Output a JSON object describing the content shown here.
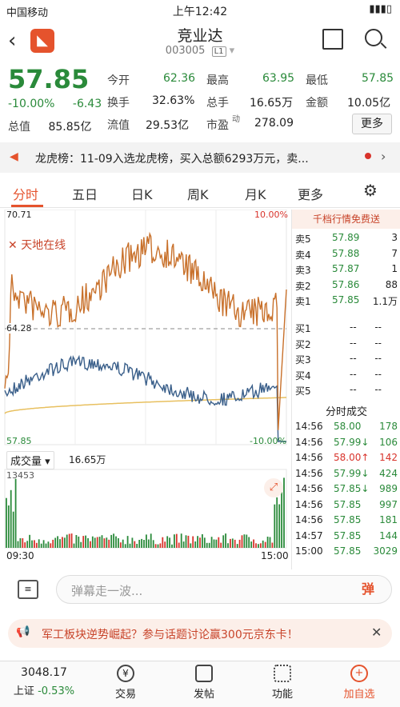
{
  "status_bar": {
    "carrier": "中国移动",
    "time": "上午12:42"
  },
  "header": {
    "title": "竞业达",
    "code": "003005",
    "badge": "L1"
  },
  "quote": {
    "price": "57.85",
    "change_pct": "-10.00%",
    "change": "-6.43",
    "total_value_label": "总值",
    "total_value": "85.85亿",
    "fields": [
      {
        "label": "今开",
        "value": "62.36",
        "color": "green"
      },
      {
        "label": "最高",
        "value": "63.95",
        "color": "green"
      },
      {
        "label": "最低",
        "value": "57.85",
        "color": "green"
      },
      {
        "label": "换手",
        "value": "32.63%",
        "color": ""
      },
      {
        "label": "总手",
        "value": "16.65万",
        "color": ""
      },
      {
        "label": "金额",
        "value": "10.05亿",
        "color": ""
      },
      {
        "label": "流值",
        "value": "29.53亿",
        "color": ""
      },
      {
        "label": "市盈",
        "value": "278.09",
        "color": "",
        "sup": "动"
      }
    ],
    "more_label": "更多"
  },
  "news": {
    "text": "龙虎榜：11-09入选龙虎榜，买入总额6293万元，卖..."
  },
  "tabs": [
    "分时",
    "五日",
    "日K",
    "周K",
    "月K",
    "更多"
  ],
  "chart": {
    "high_label": "70.71",
    "low_label": "57.85",
    "mid_label": "64.28",
    "high_pct": "10.00%",
    "low_pct": "-10.00%",
    "tiandi": "天地在线",
    "volume_label": "成交量",
    "volume_value": "16.65万",
    "volume_max": "13453",
    "time_start": "09:30",
    "time_end": "15:00"
  },
  "order_book": {
    "title": "千档行情免费送",
    "asks": [
      {
        "label": "卖5",
        "price": "57.89",
        "vol": "3"
      },
      {
        "label": "卖4",
        "price": "57.88",
        "vol": "7"
      },
      {
        "label": "卖3",
        "price": "57.87",
        "vol": "1"
      },
      {
        "label": "卖2",
        "price": "57.86",
        "vol": "88"
      },
      {
        "label": "卖1",
        "price": "57.85",
        "vol": "1.1万"
      }
    ],
    "bids": [
      {
        "label": "买1",
        "price": "--",
        "vol": "--"
      },
      {
        "label": "买2",
        "price": "--",
        "vol": "--"
      },
      {
        "label": "买3",
        "price": "--",
        "vol": "--"
      },
      {
        "label": "买4",
        "price": "--",
        "vol": "--"
      },
      {
        "label": "买5",
        "price": "--",
        "vol": "--"
      }
    ],
    "trades_title": "分时成交",
    "trades": [
      {
        "time": "14:56",
        "price": "58.00",
        "vol": "178",
        "dir": ""
      },
      {
        "time": "14:56",
        "price": "57.99↓",
        "vol": "106",
        "dir": "down"
      },
      {
        "time": "14:56",
        "price": "58.00↑",
        "vol": "142",
        "dir": "up"
      },
      {
        "time": "14:56",
        "price": "57.99↓",
        "vol": "424",
        "dir": "down"
      },
      {
        "time": "14:56",
        "price": "57.85↓",
        "vol": "989",
        "dir": "down"
      },
      {
        "time": "14:56",
        "price": "57.85",
        "vol": "997",
        "dir": ""
      },
      {
        "time": "14:56",
        "price": "57.85",
        "vol": "181",
        "dir": ""
      },
      {
        "time": "14:57",
        "price": "57.85",
        "vol": "144",
        "dir": ""
      },
      {
        "time": "15:00",
        "price": "57.85",
        "vol": "3029",
        "dir": ""
      }
    ]
  },
  "comment": {
    "placeholder": "弹幕走一波...",
    "dan": "弹"
  },
  "promo": {
    "text": "军工板块逆势崛起？参与话题讨论赢300元京东卡！"
  },
  "bottom": {
    "index_value": "3048.17",
    "index_name": "上证",
    "index_change": "-0.53%",
    "items": [
      "交易",
      "发帖",
      "功能",
      "加自选"
    ]
  },
  "colors": {
    "accent": "#e5532d",
    "down": "#2a8a3a",
    "up": "#d8332b",
    "price_line": "#c8702a",
    "avg_line": "#e8c060",
    "index_line": "#3a5f8a"
  }
}
